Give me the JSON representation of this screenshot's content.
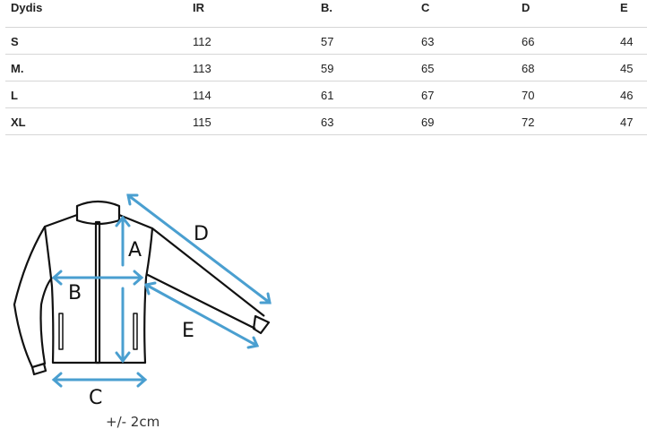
{
  "table": {
    "headers": [
      "Dydis",
      "IR",
      "B.",
      "C",
      "D",
      "E"
    ],
    "rows": [
      [
        "S",
        "112",
        "57",
        "63",
        "66",
        "44"
      ],
      [
        "M.",
        "113",
        "59",
        "65",
        "68",
        "45"
      ],
      [
        "L",
        "114",
        "61",
        "67",
        "70",
        "46"
      ],
      [
        "XL",
        "115",
        "63",
        "69",
        "72",
        "47"
      ]
    ]
  },
  "diagram": {
    "labels": {
      "a": "A",
      "b": "B",
      "c": "C",
      "d": "D",
      "e": "E"
    },
    "tolerance": "+/- 2cm",
    "arrow_color": "#4a9fd0",
    "outline_color": "#111111"
  }
}
